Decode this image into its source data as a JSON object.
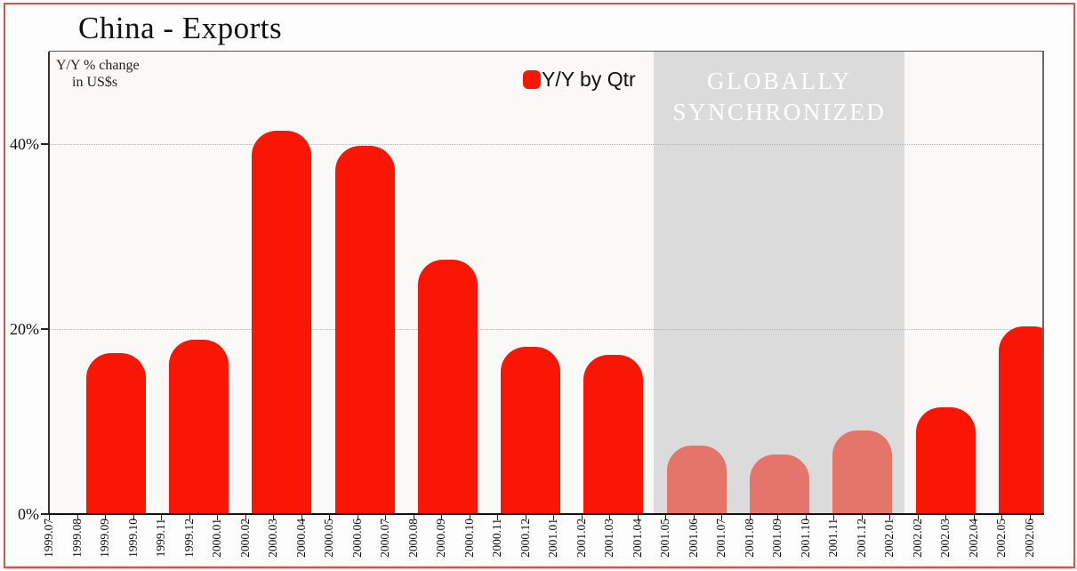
{
  "title": "China - Exports",
  "annotation": {
    "line1": "Y/Y % change",
    "line2": "in US$s"
  },
  "legend": {
    "label": "Y/Y by Qtr",
    "swatch_color": "#f91605"
  },
  "band": {
    "label": "GLOBALLY SYNCHRONIZED",
    "start_month_index": 21.6,
    "end_month_index": 30.55,
    "color": "#dbdbdb",
    "text_color": "#ffffff"
  },
  "colors": {
    "bar": "#f91605",
    "bar_muted": "#e5746b",
    "frame": "#dc5449",
    "grid": "#b2b2b2",
    "plot_bg": "#faf9f8"
  },
  "chart_data": {
    "type": "bar",
    "title": "China - Exports",
    "ylabel": "Y/Y % change in US$s",
    "ylim": [
      0,
      50
    ],
    "grid": "horizontal-dotted",
    "legend_position": "top-center",
    "legend_entries": [
      "Y/Y by Qtr"
    ],
    "yticks": [
      {
        "label": "0%",
        "value": 0
      },
      {
        "label": "20%",
        "value": 20
      },
      {
        "label": "40%",
        "value": 40
      }
    ],
    "x_tick_labels": [
      "1999.07",
      "1999.08",
      "1999.09",
      "1999.10",
      "1999.11",
      "1999.12",
      "2000.01",
      "2000.02",
      "2000.03",
      "2000.04",
      "2000.05",
      "2000.06",
      "2000.07",
      "2000.08",
      "2000.09",
      "2000.10",
      "2000.11",
      "2000.12",
      "2001.01",
      "2001.02",
      "2001.03",
      "2001.04",
      "2001.05",
      "2001.06",
      "2001.07",
      "2001.08",
      "2001.09",
      "2001.10",
      "2001.11",
      "2001.12",
      "2002.01",
      "2002.02",
      "2002.03",
      "2002.04",
      "2002.05",
      "2002.06"
    ],
    "bars": [
      {
        "months": [
          "1999.08",
          "1999.09"
        ],
        "value": 17.4,
        "muted": false
      },
      {
        "months": [
          "1999.11",
          "1999.12"
        ],
        "value": 18.8,
        "muted": false
      },
      {
        "months": [
          "2000.02",
          "2000.03"
        ],
        "value": 41.4,
        "muted": false
      },
      {
        "months": [
          "2000.05",
          "2000.06"
        ],
        "value": 39.8,
        "muted": false
      },
      {
        "months": [
          "2000.08",
          "2000.09"
        ],
        "value": 27.5,
        "muted": false
      },
      {
        "months": [
          "2000.11",
          "2000.12"
        ],
        "value": 18.1,
        "muted": false
      },
      {
        "months": [
          "2001.02",
          "2001.03"
        ],
        "value": 17.2,
        "muted": false
      },
      {
        "months": [
          "2001.05",
          "2001.06"
        ],
        "value": 7.4,
        "muted": true
      },
      {
        "months": [
          "2001.08",
          "2001.09"
        ],
        "value": 6.4,
        "muted": true
      },
      {
        "months": [
          "2001.11",
          "2001.12"
        ],
        "value": 9.0,
        "muted": true
      },
      {
        "months": [
          "2002.02",
          "2002.03"
        ],
        "value": 11.5,
        "muted": false
      },
      {
        "months": [
          "2002.05",
          "2002.06"
        ],
        "value": 20.3,
        "muted": false
      }
    ],
    "annotation_band": {
      "label": "GLOBALLY SYNCHRONIZED",
      "covers": [
        "2001.05",
        "2002.01"
      ]
    }
  }
}
